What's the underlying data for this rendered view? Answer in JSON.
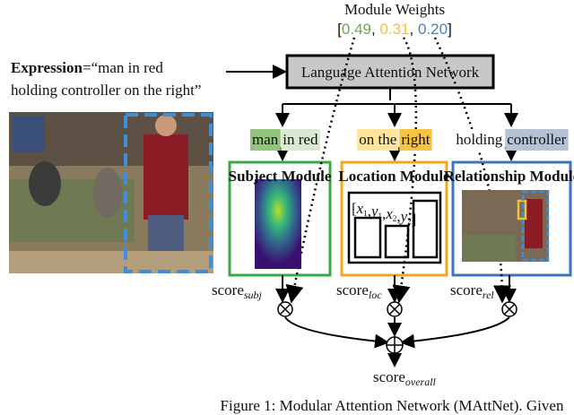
{
  "module_weights": {
    "title": "Module Weights",
    "open": "[",
    "sep": ", ",
    "close": "]",
    "weights": [
      {
        "value": "0.49",
        "color": "#6aa84f"
      },
      {
        "value": "0.31",
        "color": "#f1c232"
      },
      {
        "value": "0.20",
        "color": "#3d85c6"
      }
    ]
  },
  "expression": {
    "label": "Expression",
    "text_line1": "=“man in red",
    "text_line2": "holding controller  on the right”"
  },
  "network": {
    "label": "Language Attention Network"
  },
  "phrases": [
    {
      "parts": [
        {
          "text": "man",
          "highlight": "#93c47d"
        },
        {
          "text": "in red",
          "highlight": "#d9ead3"
        }
      ]
    },
    {
      "parts": [
        {
          "text": "on the",
          "highlight": "#ffe599"
        },
        {
          "text": "right",
          "highlight": "#f6c342"
        }
      ]
    },
    {
      "parts": [
        {
          "text": "holding",
          "highlight": "#ffffff"
        },
        {
          "text": "controller",
          "highlight": "#b4c3d6"
        }
      ]
    }
  ],
  "modules": [
    {
      "title": "Subject Module",
      "color": "#3aa845"
    },
    {
      "title": "Location Module",
      "color": "#f0a91e"
    },
    {
      "title": "Relationship Module",
      "color": "#3d74bd"
    }
  ],
  "coords": {
    "open": "[",
    "sep": ",",
    "close": "]",
    "items": [
      {
        "v": "x",
        "sub": "1"
      },
      {
        "v": "y",
        "sub": "1"
      },
      {
        "v": "x",
        "sub": "2"
      },
      {
        "v": "y",
        "sub": "2"
      }
    ]
  },
  "scores": [
    {
      "base": "score",
      "sub": "subj"
    },
    {
      "base": "score",
      "sub": "loc"
    },
    {
      "base": "score",
      "sub": "rel"
    }
  ],
  "overall": {
    "base": "score",
    "sub": "overall"
  },
  "caption": "Figure 1: Modular Attention Network (MAttNet). Given"
}
